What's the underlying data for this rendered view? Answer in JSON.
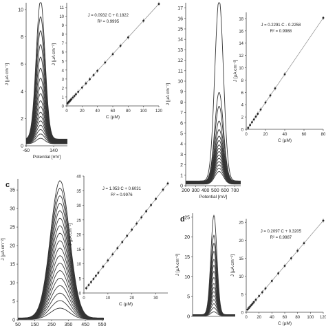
{
  "chart_data": [
    {
      "type": "line",
      "panel": "a-main",
      "xlabel": "Potential [mV]",
      "ylabel": "J [µA cm⁻²]",
      "xlim": [
        -60,
        240
      ],
      "ylim": [
        0,
        10.5
      ],
      "xticks": [
        -60,
        140
      ],
      "yticks": [
        0,
        2,
        4,
        6,
        8,
        10
      ],
      "grid": false,
      "peak_x": 45,
      "peak_width": 45,
      "peaks": [
        0.4,
        0.7,
        1.0,
        1.3,
        1.6,
        1.9,
        2.2,
        2.6,
        3.0,
        3.5,
        4.0,
        4.6,
        5.3,
        6.1,
        7.0,
        8.0,
        9.0,
        10.2
      ]
    },
    {
      "type": "scatter",
      "panel": "a-inset",
      "xlabel": "C (µM)",
      "ylabel": "J [µA cm⁻²]",
      "xlim": [
        0,
        120
      ],
      "ylim": [
        0,
        11.5
      ],
      "xticks": [
        0,
        20,
        40,
        60,
        80,
        100,
        120
      ],
      "yticks": [
        0,
        1,
        2,
        3,
        4,
        5,
        6,
        7,
        8,
        9,
        10,
        11
      ],
      "equation": "J = 0.0932 C + 0.1822",
      "r2": "R² = 0.9995",
      "x": [
        1,
        2,
        3,
        4,
        5,
        6,
        8,
        10,
        12,
        15,
        20,
        25,
        30,
        35,
        40,
        50,
        60,
        70,
        80,
        100,
        120
      ],
      "y": [
        0.28,
        0.37,
        0.46,
        0.55,
        0.65,
        0.74,
        0.93,
        1.11,
        1.3,
        1.58,
        2.05,
        2.51,
        2.98,
        3.44,
        3.91,
        4.84,
        5.77,
        6.71,
        7.64,
        9.5,
        11.37
      ]
    },
    {
      "type": "line",
      "panel": "b-main",
      "xlabel": "Potential [mV]",
      "ylabel": "J [µA cm⁻²]",
      "xlim": [
        200,
        760
      ],
      "ylim": [
        0,
        17.5
      ],
      "xticks": [
        200,
        300,
        400,
        500,
        600,
        700
      ],
      "yticks": [
        0,
        1,
        2,
        3,
        4,
        5,
        6,
        7,
        8,
        9,
        10,
        11,
        12,
        13,
        14,
        15,
        16,
        17
      ],
      "grid": false,
      "peak_x": 540,
      "peak_width": 62,
      "peaks": [
        1.2,
        1.5,
        1.8,
        2.1,
        2.4,
        2.7,
        3.0,
        3.3,
        3.6,
        4.0,
        4.4,
        5.0,
        5.8,
        7.2,
        8.5,
        17.4
      ]
    },
    {
      "type": "scatter",
      "panel": "b-inset",
      "xlabel": "C (µM)",
      "ylabel": "J [µA cm⁻²]",
      "xlim": [
        0,
        80
      ],
      "ylim": [
        0,
        19
      ],
      "xticks": [
        0,
        20,
        40,
        60,
        80
      ],
      "yticks": [
        0,
        2,
        4,
        6,
        8,
        10,
        12,
        14,
        16,
        18
      ],
      "equation": "J = 0.2291 C - 0.2258",
      "r2": "R² = 0.9988",
      "x": [
        2,
        4,
        6,
        8,
        10,
        12,
        15,
        20,
        25,
        30,
        40,
        80
      ],
      "y": [
        0.23,
        0.69,
        1.15,
        1.61,
        2.07,
        2.52,
        3.21,
        4.36,
        5.5,
        6.65,
        8.94,
        18.1
      ]
    },
    {
      "type": "line",
      "panel": "c-main",
      "panel_label": "c",
      "xlabel": "",
      "ylabel": "J [µA cm⁻²]",
      "xlim": [
        50,
        560
      ],
      "ylim": [
        0,
        38
      ],
      "xticks": [
        50,
        150,
        250,
        350,
        450,
        550
      ],
      "yticks": [
        0,
        5,
        10,
        15,
        20,
        25,
        30,
        35
      ],
      "grid": false,
      "peak_x": 300,
      "peak_width": 80,
      "peaks": [
        3,
        5,
        7,
        9,
        11,
        13,
        15,
        17,
        19,
        21,
        23,
        25,
        27,
        29,
        31,
        33,
        35,
        37
      ]
    },
    {
      "type": "scatter",
      "panel": "c-inset",
      "xlabel": "C (µM)",
      "ylabel": "J [µA cm⁻²]",
      "xlim": [
        0,
        35
      ],
      "ylim": [
        0,
        40
      ],
      "xticks": [
        0,
        10,
        20,
        30
      ],
      "yticks": [
        0,
        5,
        10,
        15,
        20,
        25,
        30,
        35,
        40
      ],
      "equation": "J = 1.053 C + 0.6031",
      "r2": "R² = 0.9976",
      "x": [
        1,
        2,
        3,
        4,
        5,
        6,
        8,
        10,
        12,
        14,
        16,
        18,
        20,
        22,
        24,
        26,
        28,
        30,
        33,
        35
      ],
      "y": [
        1.66,
        2.71,
        3.76,
        4.82,
        5.87,
        6.92,
        9.03,
        11.13,
        13.24,
        15.35,
        17.45,
        19.56,
        21.66,
        23.77,
        25.88,
        27.98,
        30.09,
        32.19,
        35.35,
        37.46
      ]
    },
    {
      "type": "line",
      "panel": "d-main",
      "panel_label": "d",
      "xlabel": "",
      "ylabel": "J [µA cm⁻²]",
      "xlim": [
        0,
        100
      ],
      "ylim": [
        0,
        26
      ],
      "xticks": [],
      "yticks": [
        0,
        5,
        10,
        15,
        20,
        25
      ],
      "grid": false,
      "peak_x": 50,
      "peak_width": 10,
      "peaks": [
        1,
        2,
        3,
        4,
        5,
        6,
        7,
        8,
        9.5,
        11,
        12.5,
        14,
        16,
        18,
        20,
        25
      ]
    },
    {
      "type": "scatter",
      "panel": "d-inset",
      "xlabel": "C (µM)",
      "ylabel": "J [µA cm⁻²]",
      "xlim": [
        0,
        120
      ],
      "ylim": [
        0,
        26
      ],
      "xticks": [
        0,
        20,
        40,
        60,
        80,
        100,
        120
      ],
      "yticks": [
        0,
        5,
        10,
        15,
        20,
        25
      ],
      "equation": "J = 0.2097 C + 0.3205",
      "r2": "R² = 0.9987",
      "x": [
        2,
        4,
        6,
        8,
        10,
        12,
        15,
        20,
        25,
        30,
        40,
        50,
        60,
        70,
        80,
        90,
        120
      ],
      "y": [
        0.74,
        1.16,
        1.58,
        2.0,
        2.42,
        2.84,
        3.47,
        4.51,
        5.56,
        6.61,
        8.71,
        10.81,
        12.9,
        15.0,
        17.1,
        19.19,
        25.48
      ]
    }
  ]
}
